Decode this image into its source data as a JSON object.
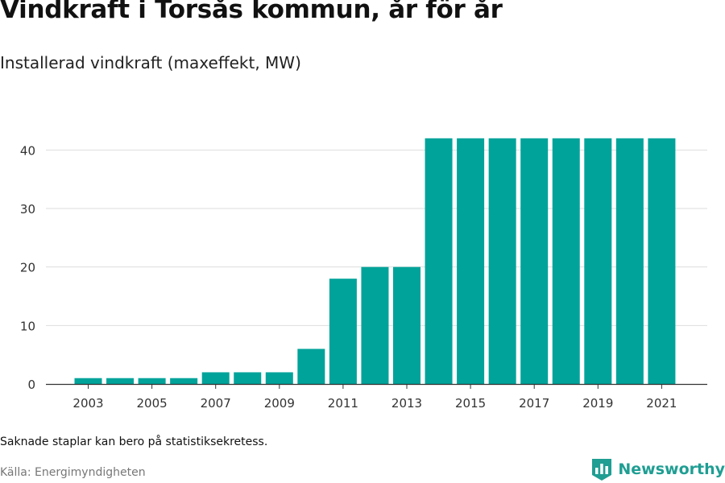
{
  "header": {
    "title": "Vindkraft i Torsås kommun, år för år",
    "subtitle": "Installerad vindkraft (maxeffekt, MW)"
  },
  "footer": {
    "note": "Saknade staplar kan bero på statistiksekretess.",
    "source": "Källa: Energimyndigheten",
    "brand": "Newsworthy",
    "brand_icon": "bar-chart-tag-icon"
  },
  "colors": {
    "bar": "#00a39a",
    "grid": "#dddddd",
    "axis": "#333333",
    "brand": "#1f9e93"
  },
  "chart_data": {
    "type": "bar",
    "title": "Vindkraft i Torsås kommun, år för år",
    "subtitle": "Installerad vindkraft (maxeffekt, MW)",
    "categories": [
      "2003",
      "2004",
      "2005",
      "2006",
      "2007",
      "2008",
      "2009",
      "2010",
      "2011",
      "2012",
      "2013",
      "2014",
      "2015",
      "2016",
      "2017",
      "2018",
      "2019",
      "2020",
      "2021"
    ],
    "values": [
      1,
      1,
      1,
      1,
      2,
      2,
      2,
      6,
      18,
      20,
      20,
      42,
      42,
      42,
      42,
      42,
      42,
      42,
      42
    ],
    "x_tick_labels": [
      "2003",
      "2005",
      "2007",
      "2009",
      "2011",
      "2013",
      "2015",
      "2017",
      "2019",
      "2021"
    ],
    "y_ticks": [
      0,
      10,
      20,
      30,
      40
    ],
    "ylim": [
      0,
      45
    ],
    "grid": true,
    "legend": "none"
  }
}
